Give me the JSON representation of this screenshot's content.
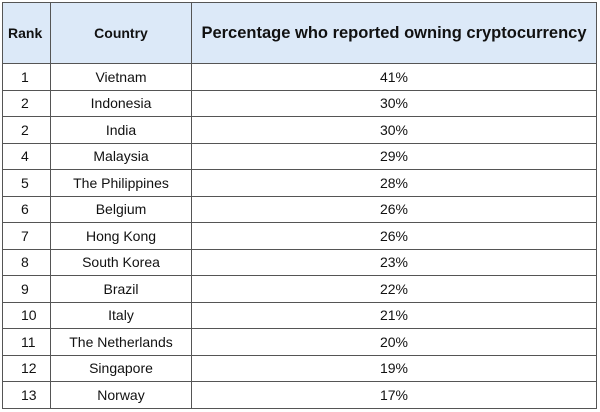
{
  "table": {
    "header": [
      "Rank",
      "Country",
      "Percentage who reported owning cryptocurrency"
    ],
    "rows": [
      [
        "1",
        "Vietnam",
        "41%"
      ],
      [
        "2",
        "Indonesia",
        "30%"
      ],
      [
        "2",
        "India",
        "30%"
      ],
      [
        "4",
        "Malaysia",
        "29%"
      ],
      [
        "5",
        "The Philippines",
        "28%"
      ],
      [
        "6",
        "Belgium",
        "26%"
      ],
      [
        "7",
        "Hong Kong",
        "26%"
      ],
      [
        "8",
        "South Korea",
        "23%"
      ],
      [
        "9",
        "Brazil",
        "22%"
      ],
      [
        "10",
        "Italy",
        "21%"
      ],
      [
        "11",
        "The Netherlands",
        "20%"
      ],
      [
        "12",
        "Singapore",
        "19%"
      ],
      [
        "13",
        "Norway",
        "17%"
      ]
    ]
  }
}
